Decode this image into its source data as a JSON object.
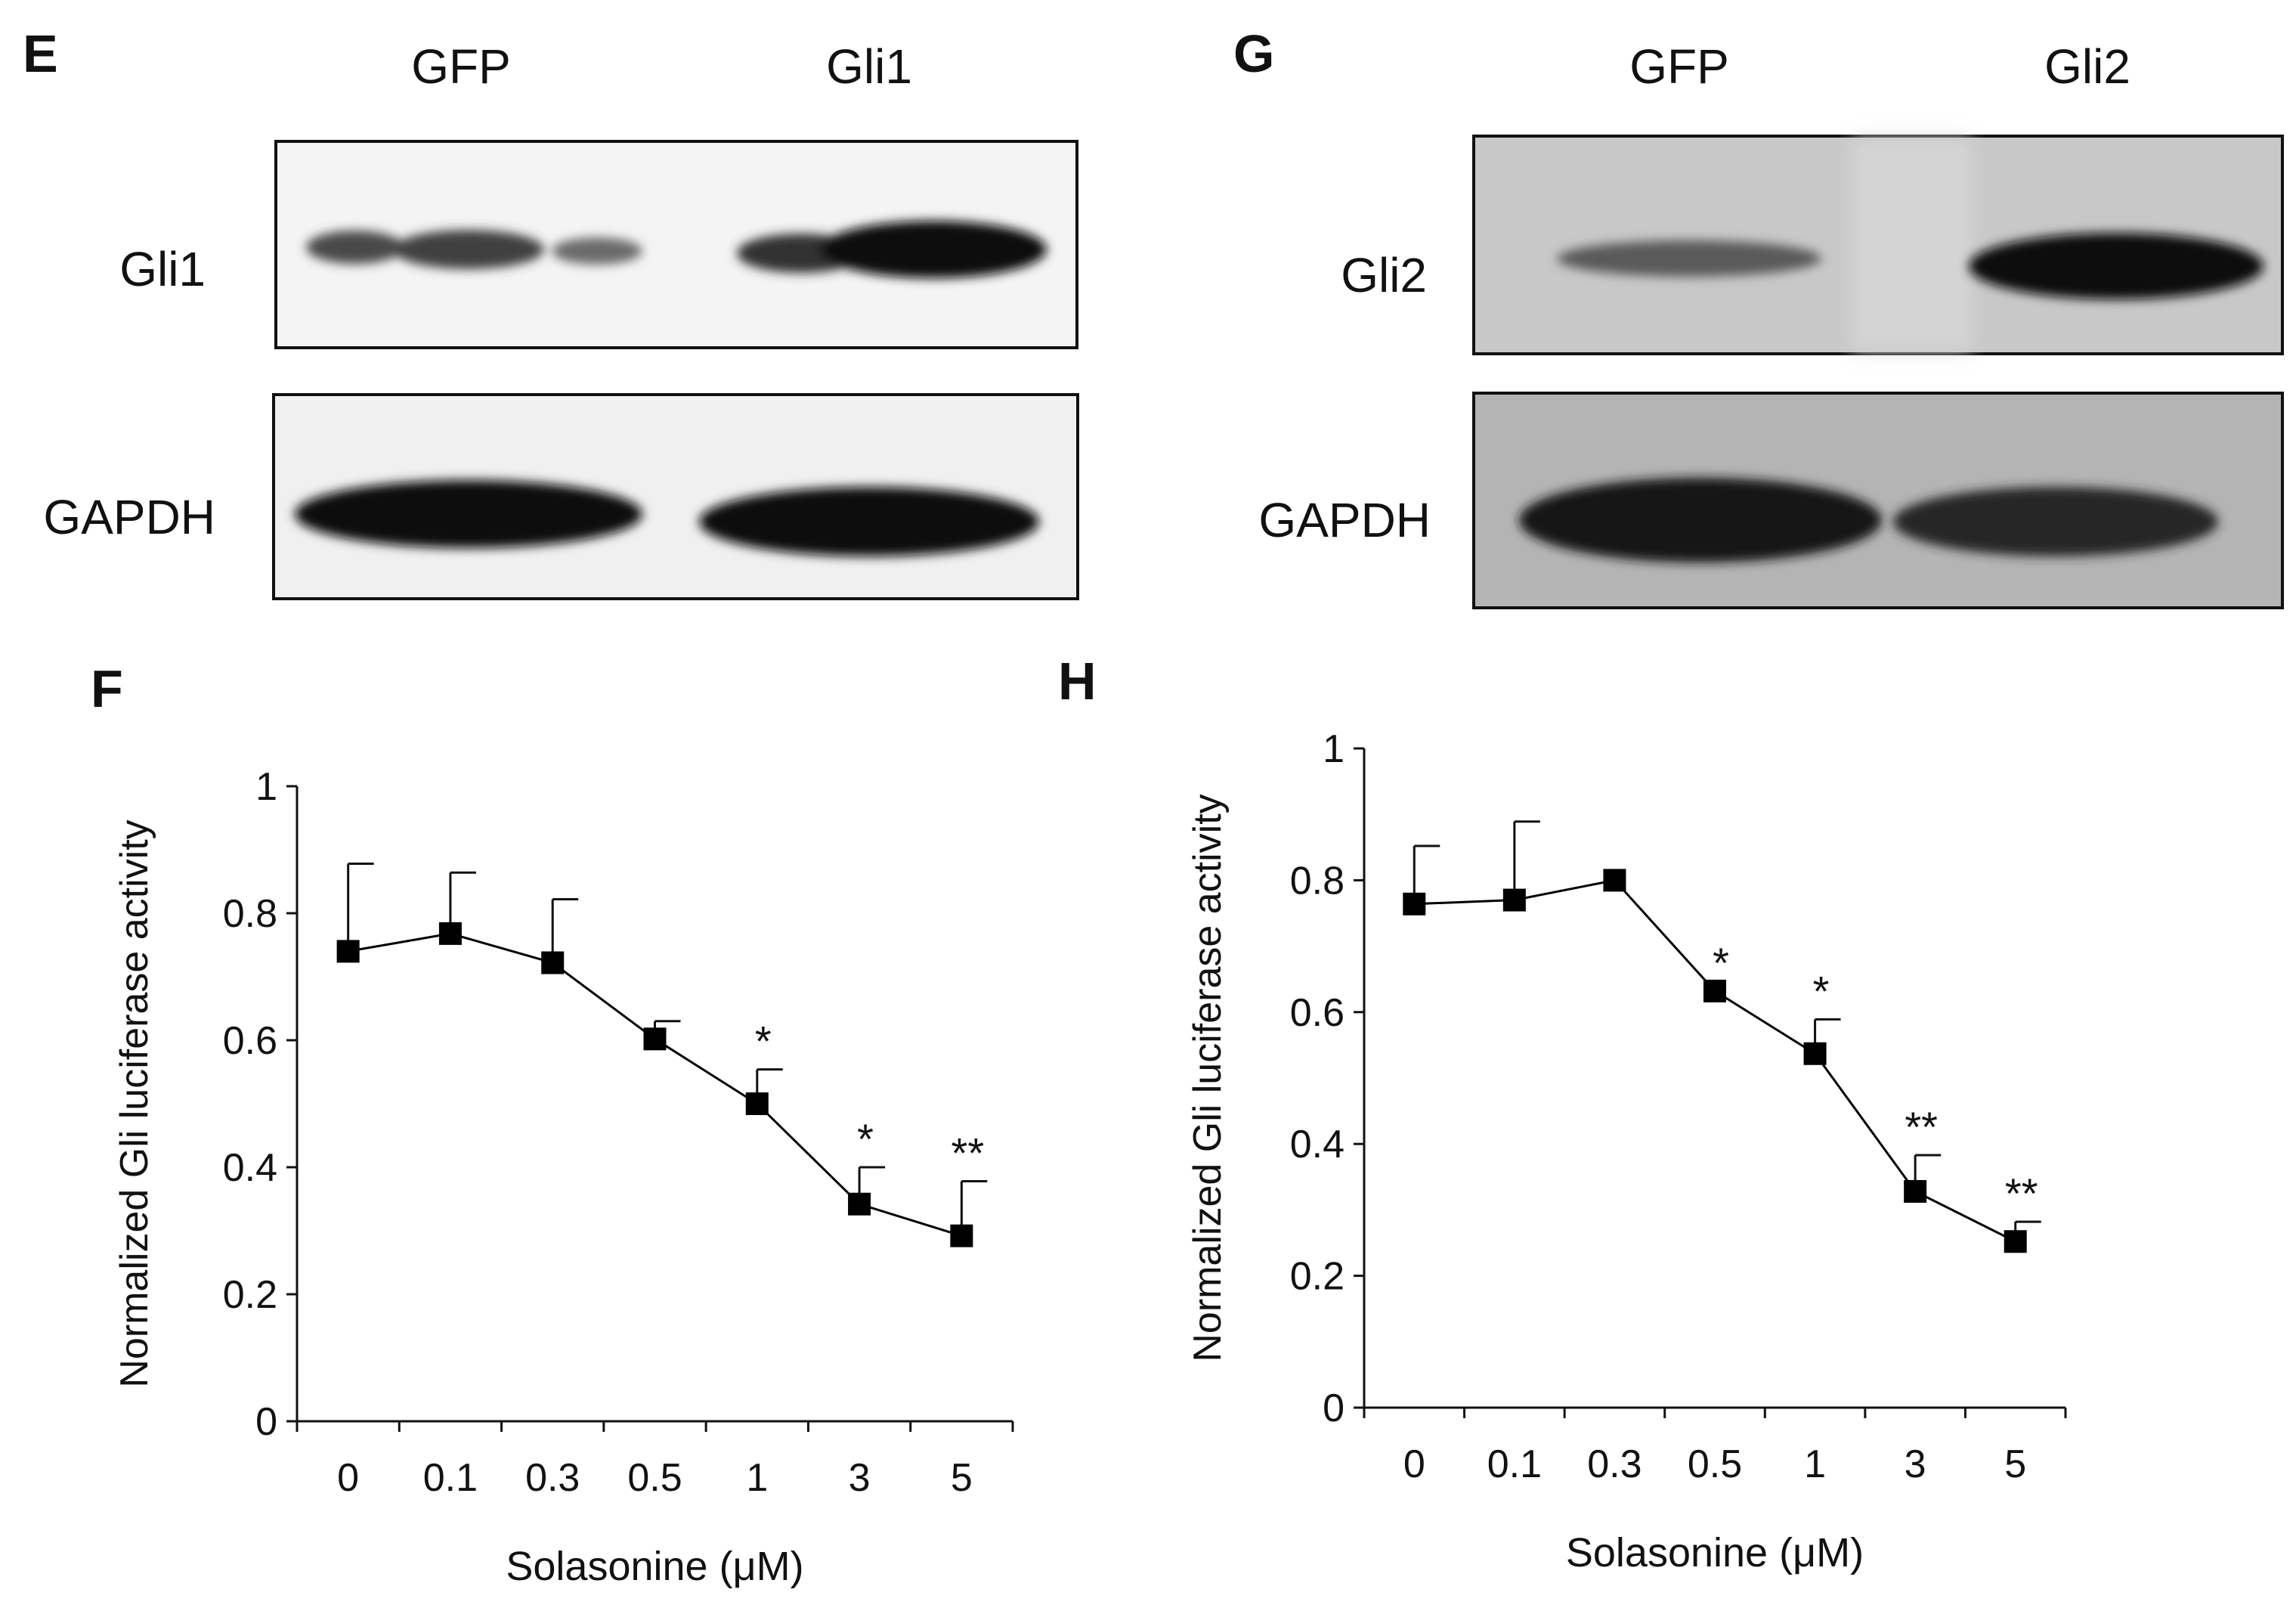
{
  "panels": {
    "E": {
      "letter": "E",
      "lanes": [
        "GFP",
        "Gli1"
      ],
      "rows": [
        "Gli1",
        "GAPDH"
      ]
    },
    "G": {
      "letter": "G",
      "lanes": [
        "GFP",
        "Gli2"
      ],
      "rows": [
        "Gli2",
        "GAPDH"
      ]
    },
    "F": {
      "letter": "F"
    },
    "H": {
      "letter": "H"
    }
  },
  "chart_data": [
    {
      "type": "line",
      "panel": "F",
      "categories": [
        "0",
        "0.1",
        "0.3",
        "0.5",
        "1",
        "3",
        "5"
      ],
      "series": [
        {
          "values": [
            0.74,
            0.768,
            0.722,
            0.602,
            0.5,
            0.342,
            0.292
          ],
          "error": [
            0.138,
            0.096,
            0.1,
            0.028,
            0.054,
            0.058,
            0.086
          ]
        }
      ],
      "annotations": [
        "",
        "",
        "",
        "",
        "*",
        "*",
        "**"
      ],
      "xlabel": "Solasonine (μM)",
      "ylabel": "Normalized  Gli  luciferase activity",
      "yticks": [
        "0",
        "0.2",
        "0.4",
        "0.6",
        "0.8",
        "1"
      ],
      "ylim": [
        0,
        1
      ],
      "marker": "square",
      "color": "#000000"
    },
    {
      "type": "line",
      "panel": "H",
      "categories": [
        "0",
        "0.1",
        "0.3",
        "0.5",
        "1",
        "3",
        "5"
      ],
      "series": [
        {
          "values": [
            0.764,
            0.77,
            0.8,
            0.632,
            0.537,
            0.328,
            0.252
          ],
          "error": [
            0.088,
            0.119,
            0.0,
            0.0,
            0.052,
            0.055,
            0.03
          ]
        }
      ],
      "annotations": [
        "",
        "",
        "",
        "*",
        "*",
        "**",
        "**"
      ],
      "xlabel": "Solasonine (μM)",
      "ylabel": "Normalized  Gli  luciferase activity",
      "yticks": [
        "0",
        "0.2",
        "0.4",
        "0.6",
        "0.8",
        "1"
      ],
      "ylim": [
        0,
        1
      ],
      "marker": "square",
      "color": "#000000"
    }
  ]
}
